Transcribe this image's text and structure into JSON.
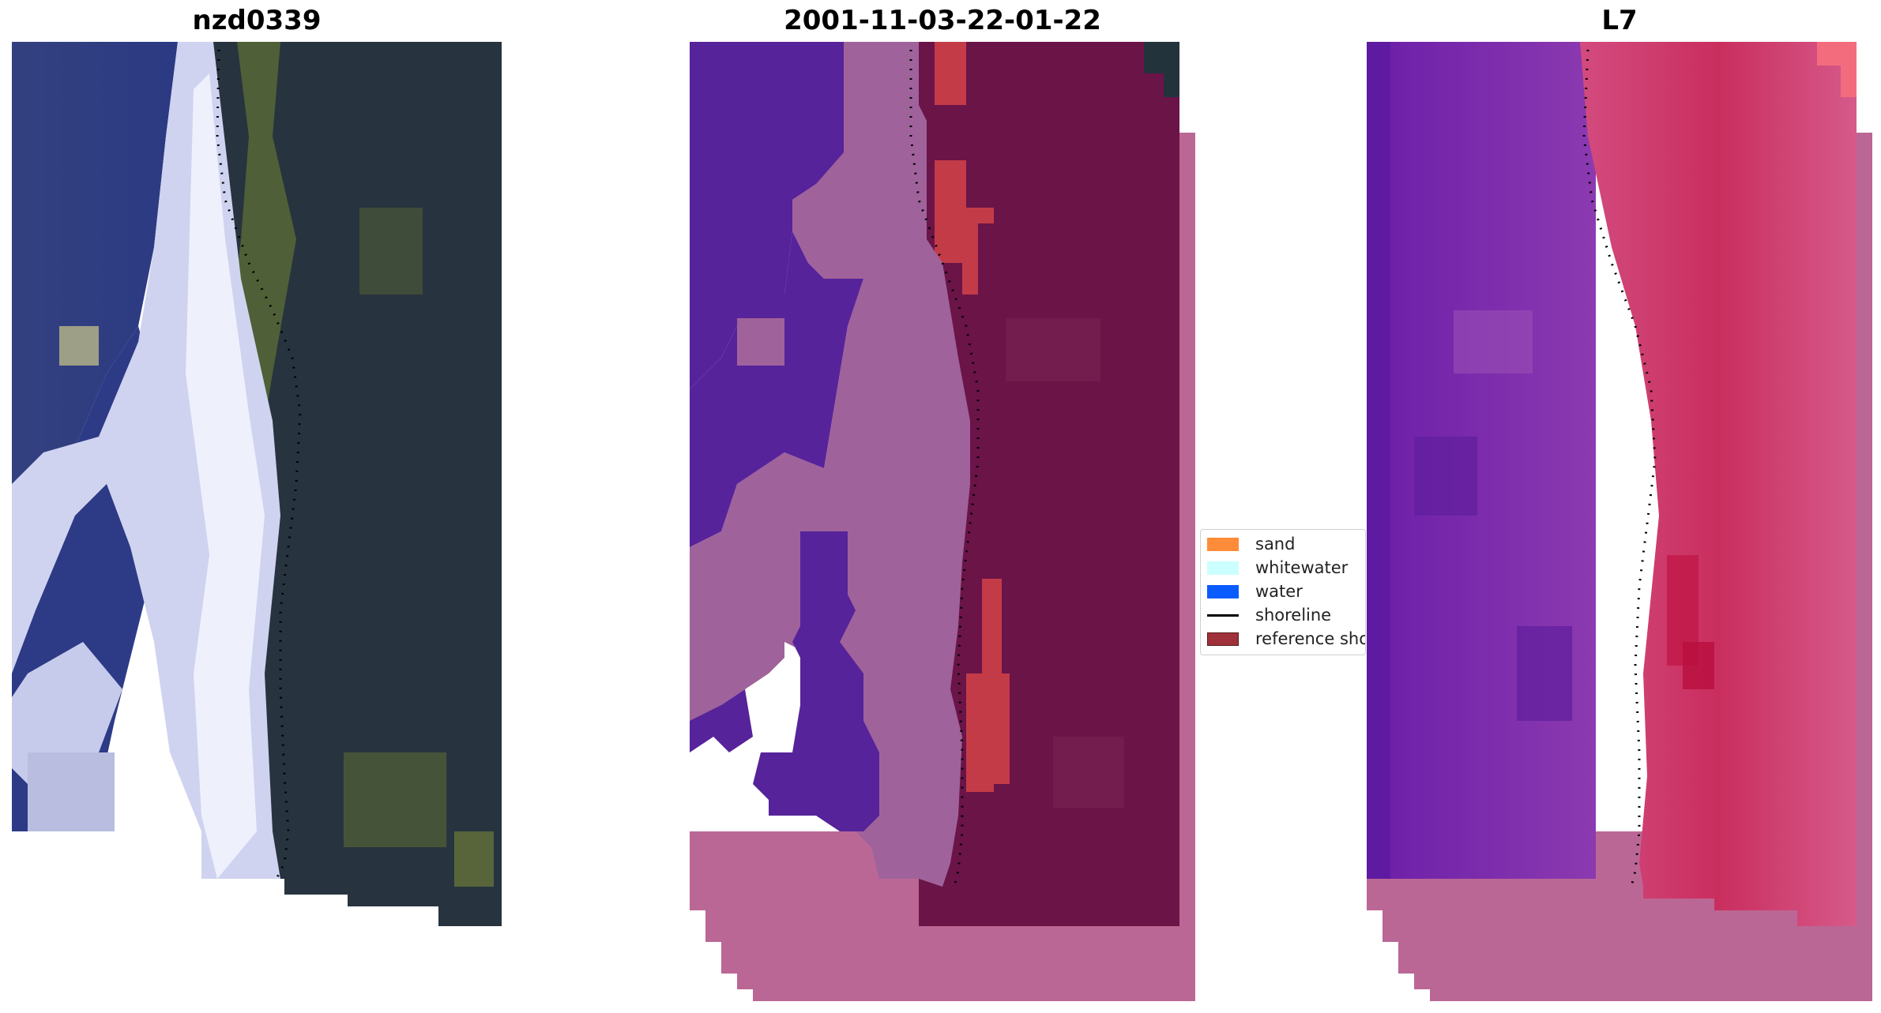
{
  "titles": {
    "left": "nzd0339",
    "center": "2001-11-03-22-01-22",
    "right": "L7"
  },
  "legend": {
    "items": [
      {
        "label": "sand",
        "color": "#ff8c3a",
        "kind": "patch"
      },
      {
        "label": "whitewater",
        "color": "#ccffff",
        "kind": "patch"
      },
      {
        "label": "water",
        "color": "#0a5cff",
        "kind": "patch"
      },
      {
        "label": "shoreline",
        "color": "#000000",
        "kind": "line"
      },
      {
        "label": "reference sho",
        "color": "#a0313a",
        "kind": "patch"
      }
    ]
  },
  "colors": {
    "rgb_water": "#2a3a7a",
    "rgb_whitewater": "#d8dcf4",
    "rgb_land": "#27343f",
    "rgb_vegetation": "#6d7a3a",
    "class_water": "#56239a",
    "class_sea": "#a0629a",
    "class_sand": "#c43b48",
    "class_land": "#6a1448",
    "class_nodata": "#bb6795",
    "mndwi_water": "#7c2aa8",
    "mndwi_land": "#cf3f70"
  }
}
